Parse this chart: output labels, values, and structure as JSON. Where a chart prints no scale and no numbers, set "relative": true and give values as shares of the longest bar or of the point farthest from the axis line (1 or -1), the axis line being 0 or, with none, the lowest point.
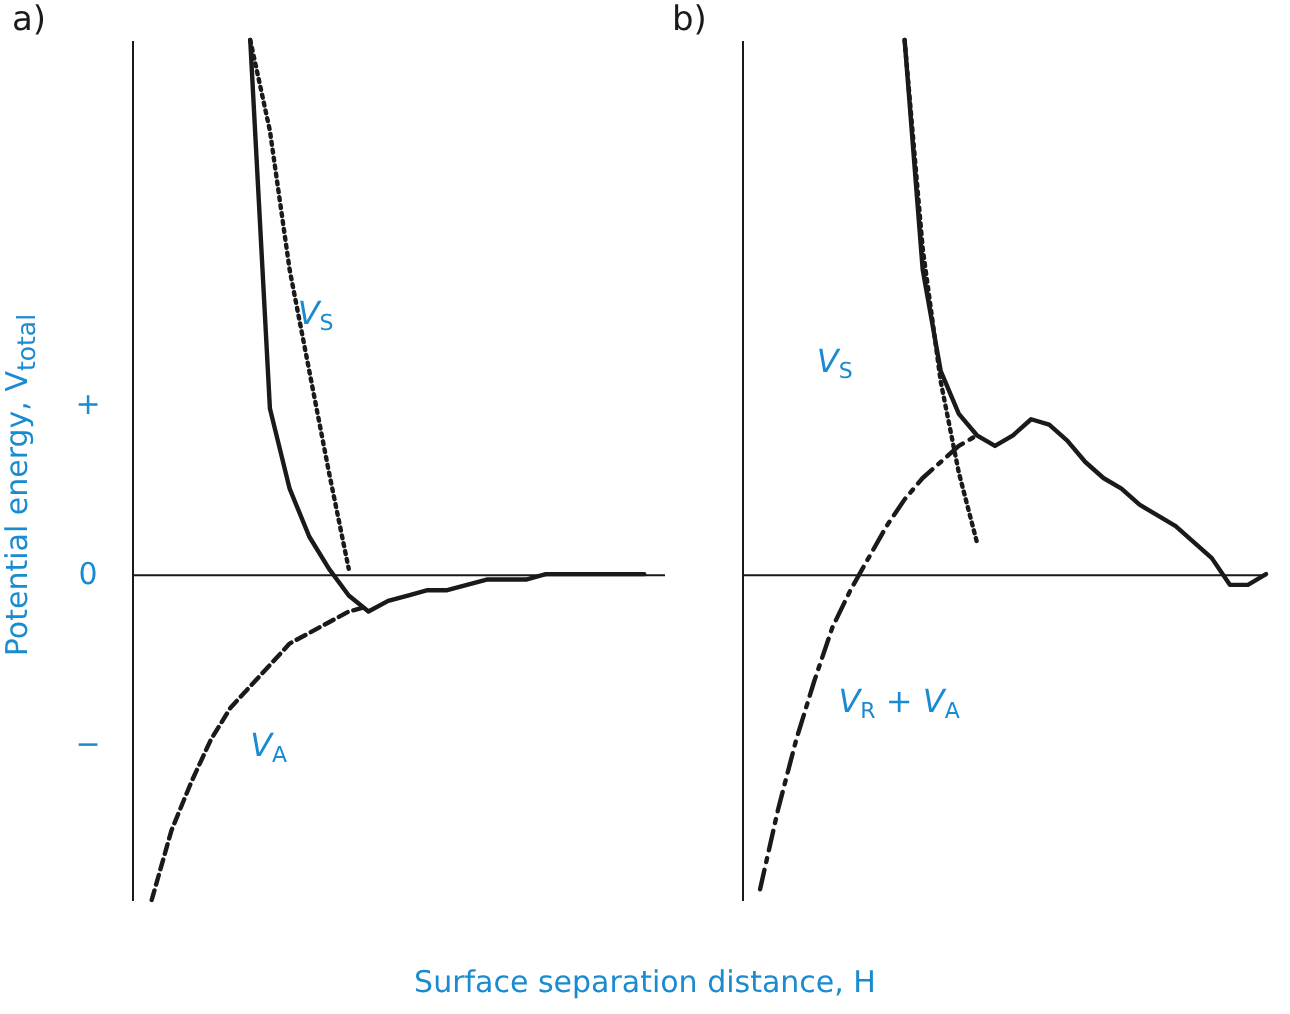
{
  "chart_data": [
    {
      "type": "line",
      "title": "a)",
      "ylabel": "Potential energy, V$_{total}$",
      "xlabel": "Surface separation distance, H",
      "relative": true,
      "tick_labels": "y",
      "annotations": [
        "+",
        "0",
        "−"
      ],
      "categories": [
        null,
        null,
        null,
        null,
        null,
        null,
        null,
        null,
        null,
        null,
        null,
        null,
        null,
        null,
        null,
        null,
        null,
        null,
        null,
        null,
        null,
        null,
        null,
        null,
        null,
        null,
        null,
        null
      ],
      "series": [
        {
          "color": "#1a1a1a",
          "line_style": "solid",
          "values": [
            null,
            null,
            null,
            null,
            null,
            null,
            1.0,
            0.31,
            0.16,
            0.07,
            0.01,
            -0.04,
            -0.07,
            -0.05,
            -0.04,
            -0.03,
            -0.03,
            -0.02,
            -0.01,
            -0.01,
            -0.01,
            0,
            0,
            0,
            0,
            0,
            0,
            null
          ]
        },
        {
          "name": "V$_{S}$",
          "color": "#1a1a1a",
          "line_style": "dotted",
          "values": [
            null,
            null,
            null,
            null,
            null,
            null,
            1.0,
            0.83,
            0.57,
            0.38,
            0.19,
            0.01,
            null,
            null,
            null,
            null,
            null,
            null,
            null,
            null,
            null,
            null,
            null,
            null,
            null,
            null,
            null,
            null
          ]
        },
        {
          "name": "V$_{A}$",
          "color": "#1a1a1a",
          "line_style": "dashed",
          "values": [
            null,
            -0.61,
            -0.48,
            -0.39,
            -0.31,
            -0.25,
            -0.21,
            -0.17,
            -0.13,
            -0.11,
            -0.09,
            -0.07,
            -0.06,
            null,
            null,
            null,
            null,
            null,
            null,
            null,
            null,
            null,
            null,
            null,
            null,
            null,
            null,
            null
          ]
        }
      ]
    },
    {
      "type": "line",
      "title": "b)",
      "relative": true,
      "tick_labels": false,
      "categories": [
        null,
        null,
        null,
        null,
        null,
        null,
        null,
        null,
        null,
        null,
        null,
        null,
        null,
        null,
        null,
        null,
        null,
        null,
        null,
        null,
        null,
        null,
        null,
        null,
        null,
        null,
        null,
        null,
        null,
        null
      ],
      "series": [
        {
          "color": "#1a1a1a",
          "line_style": "solid",
          "values": [
            null,
            null,
            null,
            null,
            null,
            null,
            null,
            null,
            null,
            1.0,
            0.57,
            0.38,
            0.3,
            0.26,
            0.24,
            0.26,
            0.29,
            0.28,
            0.25,
            0.21,
            0.18,
            0.16,
            0.13,
            0.11,
            0.09,
            0.06,
            0.03,
            -0.02,
            -0.02,
            0
          ]
        },
        {
          "name": "V$_{S}$",
          "color": "#1a1a1a",
          "line_style": "dotted",
          "values": [
            null,
            null,
            null,
            null,
            null,
            null,
            null,
            null,
            null,
            1.0,
            0.61,
            0.36,
            0.19,
            0.06,
            null,
            null,
            null,
            null,
            null,
            null,
            null,
            null,
            null,
            null,
            null,
            null,
            null,
            null,
            null,
            null
          ]
        },
        {
          "name": "V$_{R}$ + V$_{A}$",
          "color": "#1a1a1a",
          "line_style": "dashdot",
          "values": [
            null,
            -0.59,
            -0.44,
            -0.31,
            -0.2,
            -0.1,
            -0.03,
            0.03,
            0.09,
            0.14,
            0.18,
            0.21,
            0.24,
            0.26,
            null,
            null,
            null,
            null,
            null,
            null,
            null,
            null,
            null,
            null,
            null,
            null,
            null,
            null,
            null,
            null
          ]
        }
      ]
    }
  ]
}
